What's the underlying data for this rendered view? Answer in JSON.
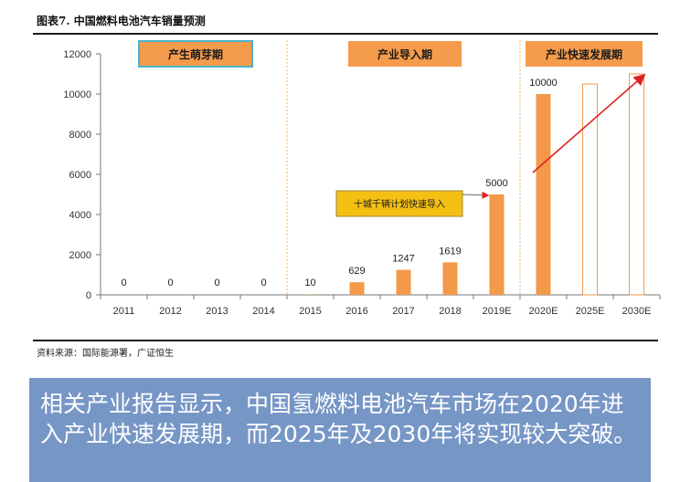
{
  "figure": {
    "title": "图表7.      中国燃料电池汽车销量预测",
    "source": "资料来源：国际能源署，广证恒生"
  },
  "banner": {
    "text": "相关产业报告显示，中国氢燃料电池汽车市场在2020年进入产业快速发展期，而2025年及2030年将实现较大突破。"
  },
  "chart_data": {
    "type": "bar",
    "title": "中国燃料电池汽车销量预测",
    "categories": [
      "2011",
      "2012",
      "2013",
      "2014",
      "2015",
      "2016",
      "2017",
      "2018",
      "2019E",
      "2020E",
      "2025E",
      "2030E"
    ],
    "values": [
      0,
      0,
      0,
      0,
      10,
      629,
      1247,
      1619,
      5000,
      10000,
      10500,
      11000
    ],
    "labels": [
      "0",
      "0",
      "0",
      "0",
      "10",
      "629",
      "1247",
      "1619",
      "5000",
      "10000",
      "",
      ""
    ],
    "bar_styles": [
      "solid",
      "solid",
      "solid",
      "solid",
      "solid",
      "solid",
      "solid",
      "solid",
      "solid",
      "solid",
      "outline",
      "outline"
    ],
    "ylim": [
      0,
      12000
    ],
    "yticks": [
      0,
      2000,
      4000,
      6000,
      8000,
      10000,
      12000
    ],
    "xlabel": "",
    "ylabel": "",
    "colors": {
      "bar": "#f29a4a",
      "phase_box": "#f59b4c",
      "phase_border": "#4bb3c9",
      "callout": "#f4c013",
      "arrow": "#e02020",
      "axis": "#777777",
      "divider": "#f0b070"
    },
    "phases": [
      {
        "label": "产生萌芽期",
        "bordered": true
      },
      {
        "label": "产业导入期",
        "bordered": false
      },
      {
        "label": "产业快速发展期",
        "bordered": false
      }
    ],
    "callout": "十城千辆计划快速导入",
    "annotations": [
      "phase dividers between 2014/2015 and 2019E/2020E",
      "red trend arrow from 2020E toward 2030E"
    ]
  }
}
